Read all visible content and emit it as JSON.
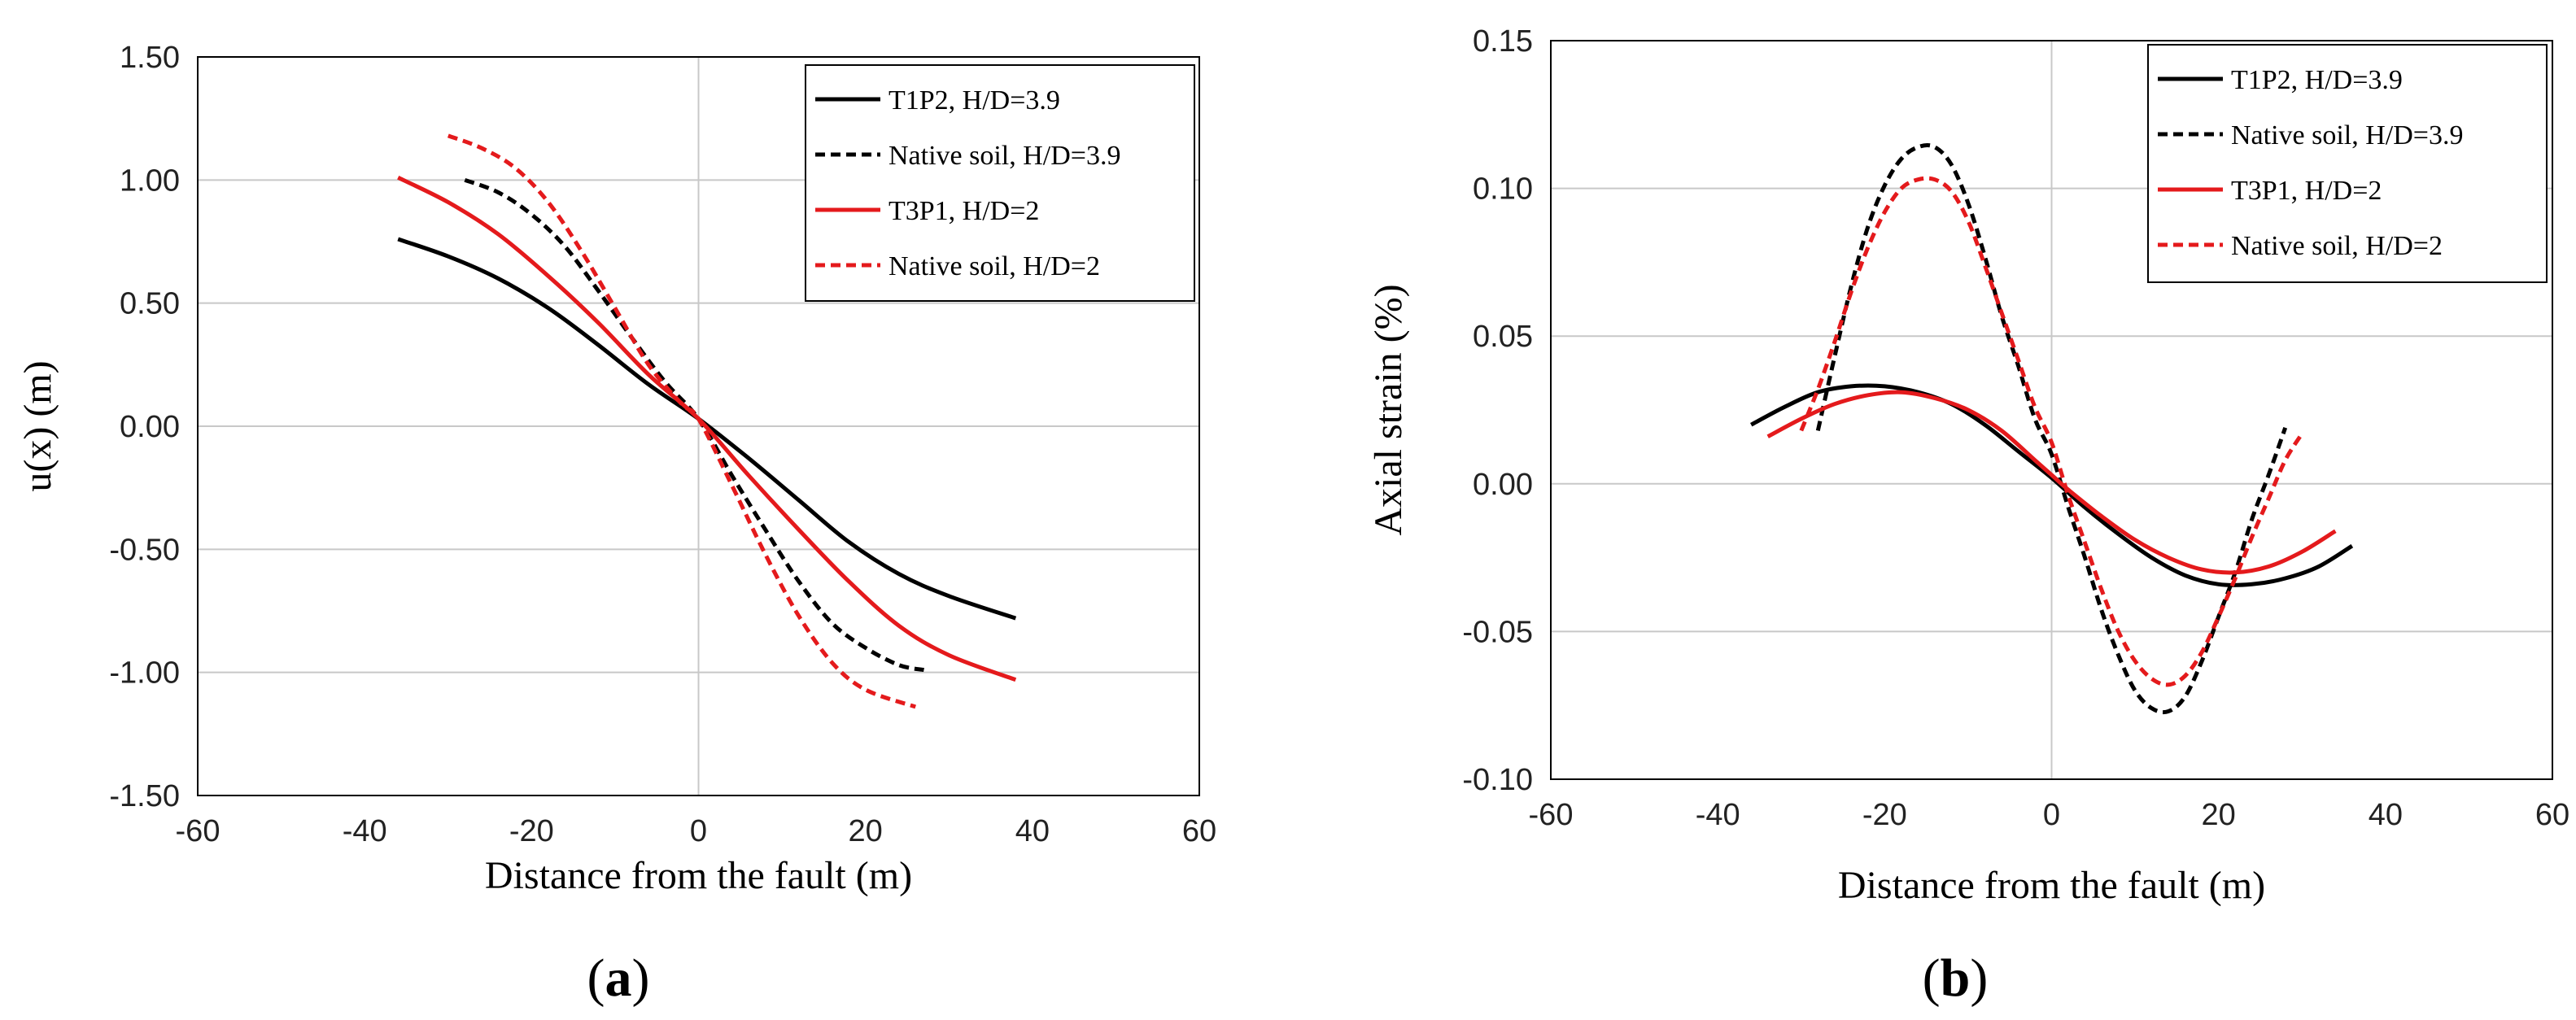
{
  "chart_data": [
    {
      "type": "line",
      "panel_label_open": "(",
      "panel_label_letter": "a",
      "panel_label_close": ")",
      "xlabel": "Distance from the fault (m)",
      "ylabel": "u(x) (m)",
      "xlim": [
        -60,
        60
      ],
      "ylim": [
        -1.5,
        1.5
      ],
      "xticks": [
        -60,
        -40,
        -20,
        0,
        20,
        40,
        60
      ],
      "yticks": [
        1.5,
        1.0,
        0.5,
        0.0,
        -0.5,
        -1.0,
        -1.5
      ],
      "xtick_labels": [
        "-60",
        "-40",
        "-20",
        "0",
        "20",
        "40",
        "60"
      ],
      "ytick_labels": [
        "1.50",
        "1.00",
        "0.50",
        "0.00",
        "-0.50",
        "-1.00",
        "-1.50"
      ],
      "grid": "horizontal",
      "legend_position": "top-right",
      "series": [
        {
          "name": "T1P2, H/D=3.9",
          "color": "#000000",
          "dash": "solid",
          "x": [
            -36,
            -30,
            -24,
            -18,
            -12,
            -6,
            0,
            6,
            12,
            18,
            24,
            30,
            38
          ],
          "y": [
            0.76,
            0.69,
            0.6,
            0.48,
            0.33,
            0.17,
            0.03,
            -0.13,
            -0.3,
            -0.47,
            -0.6,
            -0.69,
            -0.78
          ]
        },
        {
          "name": "Native soil, H/D=3.9",
          "color": "#000000",
          "dash": "dashed",
          "x": [
            -28,
            -24,
            -20,
            -16,
            -12,
            -8,
            -4,
            0,
            4,
            8,
            12,
            16,
            20,
            24,
            27
          ],
          "y": [
            1.0,
            0.95,
            0.86,
            0.73,
            0.55,
            0.36,
            0.18,
            0.03,
            -0.2,
            -0.42,
            -0.63,
            -0.8,
            -0.9,
            -0.97,
            -0.99
          ]
        },
        {
          "name": "T3P1, H/D=2",
          "color": "#e41a1c",
          "dash": "solid",
          "x": [
            -36,
            -30,
            -24,
            -18,
            -12,
            -6,
            0,
            6,
            12,
            18,
            24,
            30,
            38
          ],
          "y": [
            1.01,
            0.91,
            0.78,
            0.61,
            0.42,
            0.21,
            0.03,
            -0.2,
            -0.42,
            -0.63,
            -0.81,
            -0.93,
            -1.03
          ]
        },
        {
          "name": "Native soil, H/D=2",
          "color": "#e41a1c",
          "dash": "dashed",
          "x": [
            -30,
            -26,
            -22,
            -18,
            -14,
            -10,
            -6,
            -2,
            0,
            4,
            8,
            12,
            16,
            20,
            26
          ],
          "y": [
            1.18,
            1.13,
            1.05,
            0.91,
            0.71,
            0.48,
            0.25,
            0.09,
            0.03,
            -0.24,
            -0.52,
            -0.77,
            -0.96,
            -1.07,
            -1.14
          ]
        }
      ]
    },
    {
      "type": "line",
      "panel_label_open": "(",
      "panel_label_letter": "b",
      "panel_label_close": ")",
      "xlabel": "Distance from the fault (m)",
      "ylabel": "Axial strain (%)",
      "xlim": [
        -60,
        60
      ],
      "ylim": [
        -0.1,
        0.15
      ],
      "xticks": [
        -60,
        -40,
        -20,
        0,
        20,
        40,
        60
      ],
      "yticks": [
        0.15,
        0.1,
        0.05,
        0.0,
        -0.05,
        -0.1
      ],
      "xtick_labels": [
        "-60",
        "-40",
        "-20",
        "0",
        "20",
        "40",
        "60"
      ],
      "ytick_labels": [
        "0.15",
        "0.10",
        "0.05",
        "0.00",
        "-0.05",
        "-0.10"
      ],
      "grid": "horizontal",
      "legend_position": "top-right",
      "series": [
        {
          "name": "T1P2, H/D=3.9",
          "color": "#000000",
          "dash": "solid",
          "x": [
            -36,
            -32,
            -28,
            -24,
            -20,
            -16,
            -12,
            -8,
            -4,
            0,
            4,
            8,
            12,
            16,
            20,
            24,
            28,
            32,
            36
          ],
          "y": [
            0.02,
            0.026,
            0.031,
            0.033,
            0.033,
            0.031,
            0.027,
            0.02,
            0.011,
            0.002,
            -0.008,
            -0.017,
            -0.025,
            -0.031,
            -0.034,
            -0.034,
            -0.032,
            -0.028,
            -0.021
          ]
        },
        {
          "name": "Native soil, H/D=3.9",
          "color": "#000000",
          "dash": "dashed",
          "x": [
            -28,
            -26,
            -24,
            -22,
            -20,
            -18,
            -16,
            -14,
            -12,
            -10,
            -8,
            -6,
            -4,
            -2,
            0,
            2,
            4,
            6,
            8,
            10,
            12,
            14,
            16,
            18,
            20,
            22,
            24,
            26,
            28
          ],
          "y": [
            0.018,
            0.043,
            0.067,
            0.087,
            0.101,
            0.11,
            0.114,
            0.114,
            0.108,
            0.095,
            0.077,
            0.057,
            0.04,
            0.022,
            0.01,
            -0.008,
            -0.025,
            -0.043,
            -0.058,
            -0.07,
            -0.076,
            -0.077,
            -0.072,
            -0.06,
            -0.045,
            -0.03,
            -0.012,
            0.003,
            0.019
          ]
        },
        {
          "name": "T3P1, H/D=2",
          "color": "#e41a1c",
          "dash": "solid",
          "x": [
            -34,
            -30,
            -26,
            -22,
            -18,
            -14,
            -10,
            -6,
            -2,
            0,
            2,
            6,
            10,
            14,
            18,
            22,
            26,
            30,
            34
          ],
          "y": [
            0.016,
            0.022,
            0.027,
            0.03,
            0.031,
            0.029,
            0.025,
            0.018,
            0.008,
            0.003,
            -0.002,
            -0.011,
            -0.019,
            -0.025,
            -0.029,
            -0.03,
            -0.028,
            -0.023,
            -0.016
          ]
        },
        {
          "name": "Native soil, H/D=2",
          "color": "#e41a1c",
          "dash": "dashed",
          "x": [
            -30,
            -28,
            -26,
            -24,
            -22,
            -20,
            -18,
            -16,
            -14,
            -12,
            -10,
            -8,
            -6,
            -4,
            -2,
            0,
            2,
            4,
            6,
            8,
            10,
            12,
            14,
            16,
            18,
            20,
            22,
            24,
            26,
            28,
            30
          ],
          "y": [
            0.018,
            0.032,
            0.048,
            0.065,
            0.08,
            0.092,
            0.1,
            0.103,
            0.103,
            0.099,
            0.089,
            0.074,
            0.058,
            0.042,
            0.026,
            0.014,
            -0.004,
            -0.02,
            -0.036,
            -0.05,
            -0.06,
            -0.066,
            -0.068,
            -0.065,
            -0.057,
            -0.045,
            -0.032,
            -0.018,
            -0.005,
            0.008,
            0.017
          ]
        }
      ]
    }
  ]
}
